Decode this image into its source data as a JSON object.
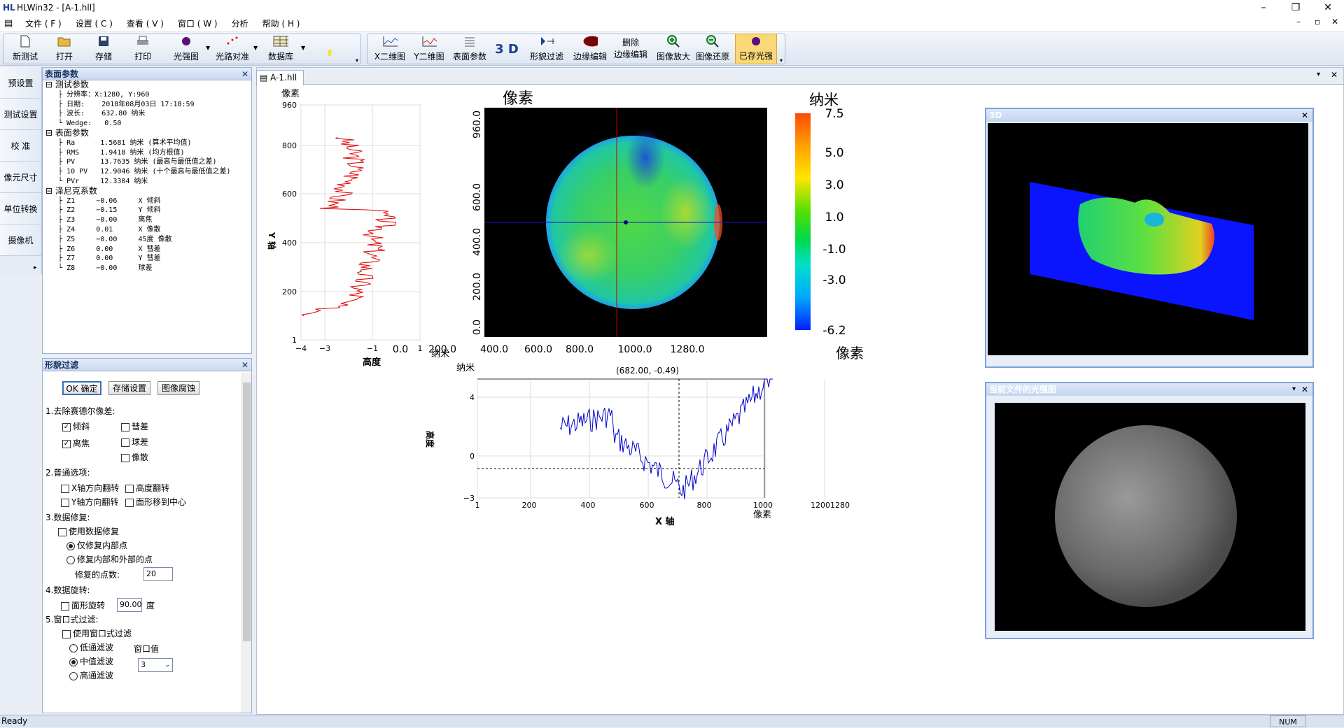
{
  "app": {
    "logo": "HL",
    "title": "HLWin32 - [A-1.hll]",
    "min": "–",
    "restore": "❐",
    "close": "✕",
    "sub_min": "–",
    "sub_restore": "▫",
    "sub_close": "✕"
  },
  "menu": [
    "文件 ( F )",
    "设置 ( C )",
    "查看 ( V )",
    "窗口 ( W )",
    "分析",
    "帮助 ( H )"
  ],
  "toolbar": {
    "new": "新测试",
    "open": "打开",
    "save": "存储",
    "print": "打印",
    "intensity": "光强图",
    "align": "光路对准",
    "database": "数据库",
    "x2d": "X二维图",
    "y2d": "Y二维图",
    "surface": "表面参数",
    "three_d": "3 D",
    "shape_filter": "形貌过滤",
    "edge_edit": "边缘编辑",
    "delete_edge_1": "删除",
    "delete_edge_2": "边缘编辑",
    "zoom_in": "图像放大",
    "zoom_restore": "图像还原",
    "saved_intensity": "已存光强"
  },
  "left_tabs": [
    "预设置",
    "测试设置",
    "校 准",
    "像元尺寸",
    "单位转换",
    "摄像机"
  ],
  "surface_panel": {
    "title": "表面参数",
    "close": "✕",
    "tree": [
      {
        "t": "⊟ 测试参数",
        "g": true
      },
      {
        "t": "   ├ 分辨率：X:1280, Y:960"
      },
      {
        "t": "   ├ 日期:    2018年08月03日 17:18:59"
      },
      {
        "t": "   ├ 波长:    632.80 纳米"
      },
      {
        "t": "   └ Wedge:   0.50"
      },
      {
        "t": "⊟ 表面参数",
        "g": true
      },
      {
        "t": "   ├ Ra      1.5681 纳米 (算术平均值)"
      },
      {
        "t": "   ├ RMS     1.9418 纳米 (均方根值)"
      },
      {
        "t": "   ├ PV      13.7635 纳米 (最高与最低值之差)"
      },
      {
        "t": "   ├ 10 PV   12.9046 纳米 (十个最高与最低值之差)"
      },
      {
        "t": "   └ PVr     12.3304 纳米"
      },
      {
        "t": "⊟ 泽尼克系数",
        "g": true
      },
      {
        "t": "   ├ Z1     −0.06     X 倾斜"
      },
      {
        "t": "   ├ Z2     −0.15     Y 倾斜"
      },
      {
        "t": "   ├ Z3     −0.00     离焦"
      },
      {
        "t": "   ├ Z4     0.01      X 像散"
      },
      {
        "t": "   ├ Z5     −0.00     45度 像散"
      },
      {
        "t": "   ├ Z6     0.00      X 彗差"
      },
      {
        "t": "   ├ Z7     0.00      Y 彗差"
      },
      {
        "t": "   └ Z8     −0.00     球差"
      }
    ]
  },
  "filter_panel": {
    "title": "形貌过滤",
    "close": "✕",
    "ok": "OK 确定",
    "save_settings": "存储设置",
    "image_corrode": "图像腐蚀",
    "s1": "1.去除赛德尔像差:",
    "tilt": "倾斜",
    "defocus": "离焦",
    "coma": "彗差",
    "sphere": "球差",
    "astig": "像散",
    "s2": "2.普通选项:",
    "xflip": "X轴方向翻转",
    "hflip": "高度翻转",
    "yflip": "Y轴方向翻转",
    "center": "面形移到中心",
    "s3": "3.数据修复:",
    "use_repair": "使用数据修复",
    "inner_only": "仅修复内部点",
    "inner_outer": "修复内部和外部的点",
    "repair_pts_label": "修复的点数:",
    "repair_pts": "20",
    "s4": "4.数据旋转:",
    "rotate": "面形旋转",
    "rot_val": "90.00",
    "deg": "度",
    "s5": "5.窗口式过滤:",
    "use_window": "使用窗口式过滤",
    "low": "低通滤波",
    "mid": "中值滤波",
    "high": "高通滤波",
    "win_label": "窗口值",
    "win_val": "3"
  },
  "doc": {
    "tab": "A-1.hll",
    "pin": "▾",
    "close": "✕"
  },
  "vprofile": {
    "ylabel_top": "像素",
    "yaxis": "Y 轴",
    "xlabel": "高度",
    "xunit": "纳米",
    "yticks": [
      "960",
      "800",
      "600",
      "400",
      "200",
      "1"
    ],
    "xticks": [
      "−4",
      "−3",
      "−1",
      "1"
    ]
  },
  "map": {
    "title": "像素",
    "xunit": "像素",
    "xticks": [
      "0.0",
      "200.0",
      "400.0",
      "600.0",
      "800.0",
      "1000.0",
      "1280.0"
    ],
    "yticks": [
      "0.0",
      "200.0",
      "400.0",
      "600.0",
      "960.0"
    ]
  },
  "colorbar": {
    "unit": "纳米",
    "ticks": [
      "7.5",
      "5.0",
      "3.0",
      "1.0",
      "-1.0",
      "-3.0",
      "-6.2"
    ]
  },
  "hprofile": {
    "cursor": "(682.00, -0.49)",
    "yunit": "纳米",
    "ylabel": "高度",
    "xlabel": "X 轴",
    "xunit": "像素",
    "xticks": [
      "1",
      "200",
      "400",
      "600",
      "800",
      "1000",
      "1200",
      "1280"
    ],
    "yticks": [
      "4",
      "0",
      "−3"
    ]
  },
  "win3d": {
    "title": "3D",
    "close": "✕"
  },
  "winint": {
    "title": "当前文件的光强图",
    "pin": "▾",
    "close": "✕"
  },
  "status": {
    "left": "Ready",
    "num": "NUM"
  },
  "colors": {
    "accent": "#1b3f8f",
    "profile_red": "#e00000",
    "profile_blue": "#0000cc",
    "plane": "#0a14ff"
  }
}
